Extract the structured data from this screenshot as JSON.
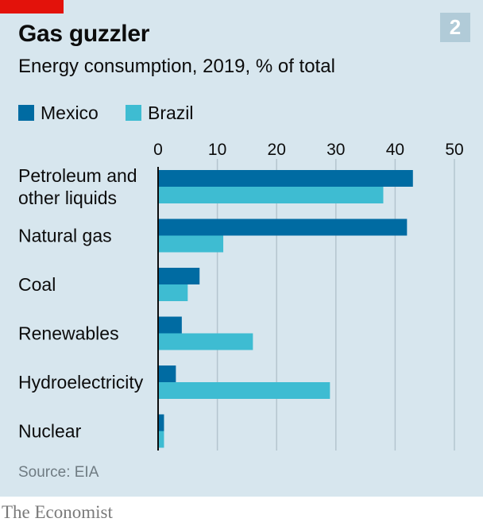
{
  "header": {
    "title": "Gas guzzler",
    "subtitle": "Energy consumption, 2019, % of total",
    "chart_number": "2"
  },
  "footer": {
    "source": "Source: EIA",
    "brand": "The Economist"
  },
  "colors": {
    "background": "#d7e6ee",
    "accent": "#e3120b",
    "mexico": "#006ba2",
    "brazil": "#3ebcd2"
  },
  "chart_data": {
    "type": "bar",
    "orientation": "horizontal",
    "title": "Gas guzzler",
    "subtitle": "Energy consumption, 2019, % of total",
    "xlabel": "",
    "ylabel": "",
    "xlim": [
      0,
      50
    ],
    "ticks": [
      0,
      10,
      20,
      30,
      40,
      50
    ],
    "grid": true,
    "legend_position": "top-left",
    "categories": [
      [
        "Petroleum and",
        "other liquids"
      ],
      [
        "Natural gas"
      ],
      [
        "Coal"
      ],
      [
        "Renewables"
      ],
      [
        "Hydroelectricity"
      ],
      [
        "Nuclear"
      ]
    ],
    "series": [
      {
        "name": "Mexico",
        "color": "#006ba2",
        "values": [
          43,
          42,
          7,
          4,
          3,
          1
        ]
      },
      {
        "name": "Brazil",
        "color": "#3ebcd2",
        "values": [
          38,
          11,
          5,
          16,
          29,
          1
        ]
      }
    ]
  }
}
